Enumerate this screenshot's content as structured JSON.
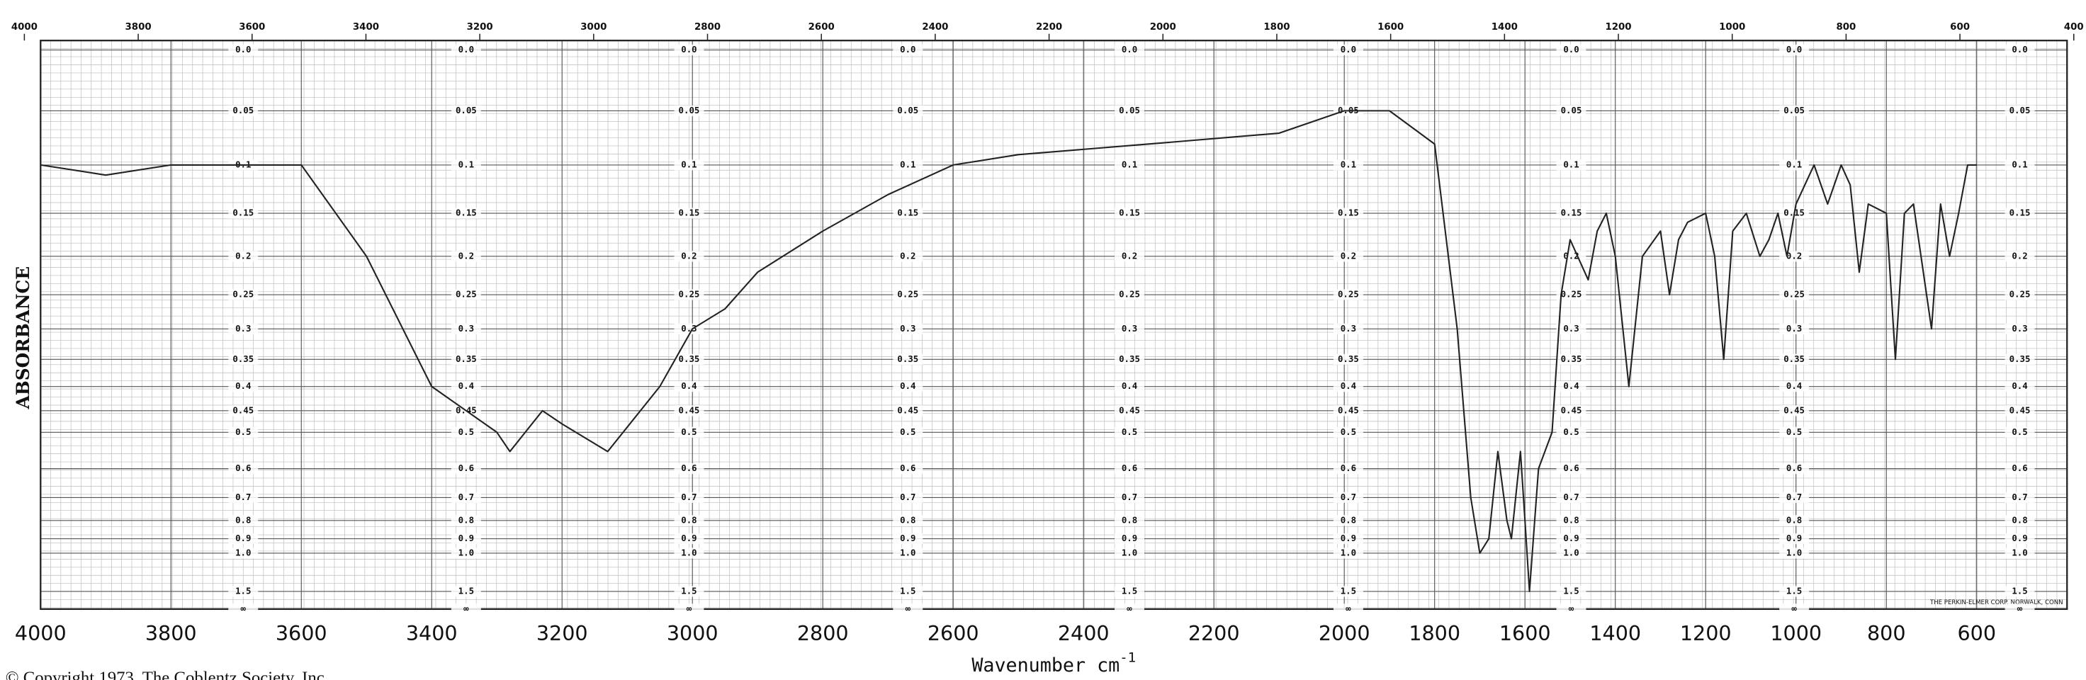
{
  "chart_data": {
    "type": "line",
    "ylabel": "ABSORBANCE",
    "xlabel": "Wavenumber cm",
    "xlabel_sup": "-1",
    "copyright": "© Copyright 1973, The Coblentz Society, Inc.",
    "maker": "THE PERKIN-ELMER CORP. NORWALK, CONN",
    "yscale": "absorbance",
    "grid": true,
    "color": "#222222",
    "xlim": [
      4000,
      400
    ],
    "ylim": [
      0,
      null
    ],
    "xticks": [
      4000,
      3800,
      3600,
      3400,
      3200,
      3000,
      2800,
      2600,
      2400,
      2200,
      2000,
      1800,
      1600,
      1400,
      1200,
      1000,
      800,
      600
    ],
    "x2ticks": [
      4000,
      3800,
      3600,
      3400,
      3200,
      3000,
      2800,
      2600,
      2400,
      2200,
      2000,
      1800,
      1600,
      1400,
      1200,
      1000,
      800,
      600,
      400
    ],
    "yticks": [
      {
        "value": 0,
        "label": "0.0"
      },
      0.05,
      0.1,
      0.15,
      0.2,
      0.25,
      0.3,
      0.35,
      0.4,
      0.45,
      0.5,
      0.6,
      0.7,
      0.8,
      0.9,
      {
        "value": 1,
        "label": "1.0"
      },
      1.5,
      {
        "value": null,
        "label": "∞"
      }
    ],
    "x": [
      4000,
      3900,
      3800,
      3700,
      3600,
      3500,
      3400,
      3300,
      3280,
      3230,
      3200,
      3130,
      3050,
      3000,
      2950,
      2900,
      2800,
      2700,
      2600,
      2500,
      2300,
      2100,
      2000,
      1900,
      1800,
      1750,
      1720,
      1700,
      1680,
      1660,
      1640,
      1630,
      1610,
      1600,
      1590,
      1570,
      1540,
      1520,
      1500,
      1460,
      1440,
      1420,
      1400,
      1370,
      1340,
      1300,
      1280,
      1260,
      1240,
      1200,
      1180,
      1160,
      1140,
      1110,
      1080,
      1060,
      1040,
      1020,
      1000,
      960,
      930,
      900,
      880,
      860,
      840,
      800,
      780,
      760,
      740,
      700,
      680,
      660,
      640,
      620,
      600
    ],
    "values": [
      0.1,
      0.11,
      0.1,
      0.1,
      0.1,
      0.2,
      0.4,
      0.5,
      0.55,
      0.45,
      0.48,
      0.55,
      0.4,
      0.3,
      0.27,
      0.22,
      0.17,
      0.13,
      0.1,
      0.09,
      0.08,
      0.07,
      0.05,
      0.05,
      0.08,
      0.3,
      0.7,
      1.0,
      0.9,
      0.55,
      0.8,
      0.9,
      0.55,
      0.8,
      1.5,
      0.6,
      0.5,
      0.25,
      0.18,
      0.23,
      0.17,
      0.15,
      0.2,
      0.4,
      0.2,
      0.17,
      0.25,
      0.18,
      0.16,
      0.15,
      0.2,
      0.35,
      0.17,
      0.15,
      0.2,
      0.18,
      0.15,
      0.2,
      0.14,
      0.1,
      0.14,
      0.1,
      0.12,
      0.22,
      0.14,
      0.15,
      0.35,
      0.15,
      0.14,
      0.3,
      0.14,
      0.2,
      0.15,
      0.1,
      0.1
    ]
  }
}
